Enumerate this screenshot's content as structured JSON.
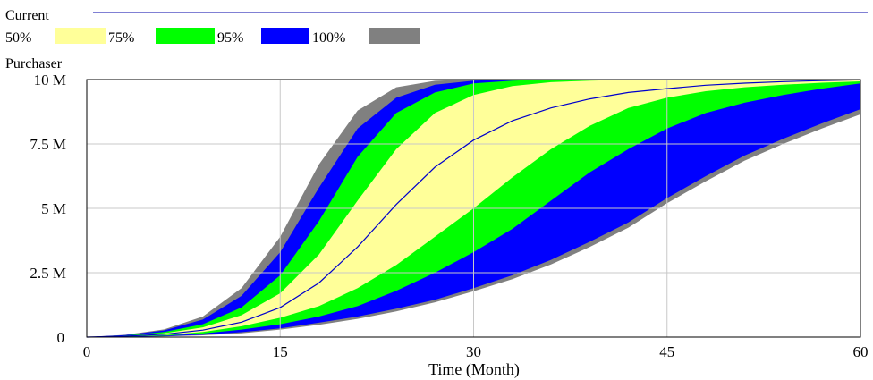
{
  "chart_data": {
    "type": "area",
    "title": "Current",
    "ylabel": "Purchaser",
    "xlabel": "Time (Month)",
    "xlim": [
      0,
      60
    ],
    "ylim": [
      0,
      10000000
    ],
    "x_ticks": [
      0,
      15,
      30,
      45,
      60
    ],
    "x_tick_labels": [
      "0",
      "15",
      "30",
      "45",
      "60"
    ],
    "y_ticks": [
      0,
      2500000,
      5000000,
      7500000,
      10000000
    ],
    "y_tick_labels": [
      "0",
      "2.5 M",
      "5 M",
      "7.5 M",
      "10 M"
    ],
    "grid": true,
    "legend_position": "top-left",
    "legend": [
      {
        "label": "50%",
        "color": "#ffff99"
      },
      {
        "label": "75%",
        "color": "#00ff00"
      },
      {
        "label": "95%",
        "color": "#0000ff"
      },
      {
        "label": "100%",
        "color": "#808080"
      }
    ],
    "colors": {
      "current_line": "#0000cc",
      "title_rule": "#0000aa",
      "gridline": "#c8c8c8"
    },
    "x": [
      0,
      3,
      6,
      9,
      12,
      15,
      18,
      21,
      24,
      27,
      30,
      33,
      36,
      39,
      42,
      45,
      48,
      51,
      54,
      57,
      60
    ],
    "bands": [
      {
        "name": "100%",
        "lower": [
          0,
          6000,
          25000,
          70000,
          150000,
          290000,
          480000,
          710000,
          1000000,
          1350000,
          1780000,
          2250000,
          2820000,
          3500000,
          4250000,
          5200000,
          6050000,
          6850000,
          7500000,
          8100000,
          8650000
        ],
        "upper": [
          0,
          90000,
          300000,
          800000,
          1900000,
          3900000,
          6700000,
          8800000,
          9700000,
          9950000,
          10000000,
          10000000,
          10000000,
          10000000,
          10000000,
          10000000,
          10000000,
          10000000,
          10000000,
          10000000,
          10000000
        ]
      },
      {
        "name": "95%",
        "lower": [
          0,
          9000,
          35000,
          90000,
          190000,
          340000,
          560000,
          800000,
          1100000,
          1450000,
          1900000,
          2400000,
          3000000,
          3700000,
          4450000,
          5400000,
          6250000,
          7050000,
          7700000,
          8300000,
          8850000
        ],
        "upper": [
          0,
          80000,
          260000,
          680000,
          1600000,
          3300000,
          5800000,
          8100000,
          9300000,
          9800000,
          9960000,
          10000000,
          10000000,
          10000000,
          10000000,
          10000000,
          10000000,
          10000000,
          10000000,
          10000000,
          10000000
        ]
      },
      {
        "name": "75%",
        "lower": [
          0,
          16000,
          55000,
          140000,
          290000,
          500000,
          800000,
          1200000,
          1800000,
          2500000,
          3300000,
          4200000,
          5300000,
          6400000,
          7300000,
          8100000,
          8700000,
          9100000,
          9400000,
          9650000,
          9850000
        ],
        "upper": [
          0,
          60000,
          200000,
          500000,
          1150000,
          2400000,
          4500000,
          7000000,
          8700000,
          9500000,
          9850000,
          9960000,
          10000000,
          10000000,
          10000000,
          10000000,
          10000000,
          10000000,
          10000000,
          10000000,
          10000000
        ]
      },
      {
        "name": "50%",
        "lower": [
          0,
          25000,
          80000,
          200000,
          420000,
          750000,
          1200000,
          1900000,
          2800000,
          3900000,
          5000000,
          6200000,
          7300000,
          8200000,
          8900000,
          9300000,
          9550000,
          9700000,
          9800000,
          9880000,
          9930000
        ],
        "upper": [
          0,
          45000,
          150000,
          380000,
          850000,
          1700000,
          3200000,
          5300000,
          7300000,
          8700000,
          9400000,
          9750000,
          9900000,
          9960000,
          9990000,
          10000000,
          10000000,
          10000000,
          10000000,
          10000000,
          10000000
        ]
      }
    ],
    "series": [
      {
        "name": "Current",
        "values": [
          0,
          35000,
          110000,
          270000,
          580000,
          1150000,
          2100000,
          3500000,
          5150000,
          6600000,
          7650000,
          8400000,
          8900000,
          9250000,
          9500000,
          9650000,
          9780000,
          9860000,
          9920000,
          9960000,
          9990000
        ]
      }
    ]
  }
}
